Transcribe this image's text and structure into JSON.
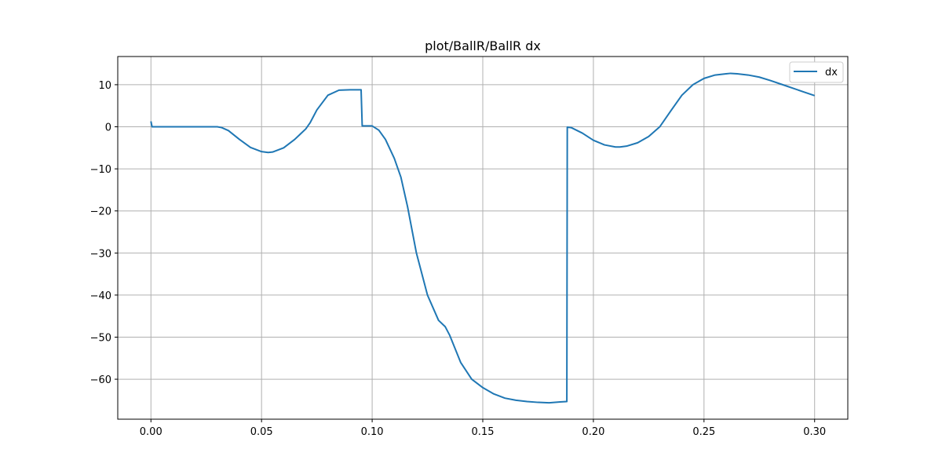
{
  "chart_data": {
    "type": "line",
    "title": "plot/BallR/BallR dx",
    "xlabel": "",
    "ylabel": "",
    "xlim": [
      -0.015,
      0.315
    ],
    "ylim": [
      -69.5,
      16.7
    ],
    "grid": true,
    "legend_position": "top-right",
    "x_ticks": [
      0.0,
      0.05,
      0.1,
      0.15,
      0.2,
      0.25,
      0.3
    ],
    "x_tick_labels": [
      "0.00",
      "0.05",
      "0.10",
      "0.15",
      "0.20",
      "0.25",
      "0.30"
    ],
    "y_ticks": [
      10,
      0,
      -10,
      -20,
      -30,
      -40,
      -50,
      -60
    ],
    "y_tick_labels": [
      "10",
      "0",
      "−10",
      "−20",
      "−30",
      "−40",
      "−50",
      "−60"
    ],
    "series": [
      {
        "name": "dx",
        "color": "#1f77b4",
        "points": [
          [
            0.0,
            1.3
          ],
          [
            0.0005,
            0.0
          ],
          [
            0.01,
            0.0
          ],
          [
            0.02,
            0.0
          ],
          [
            0.03,
            0.0
          ],
          [
            0.032,
            -0.2
          ],
          [
            0.035,
            -0.9
          ],
          [
            0.04,
            -3.0
          ],
          [
            0.045,
            -4.9
          ],
          [
            0.05,
            -5.9
          ],
          [
            0.053,
            -6.1
          ],
          [
            0.055,
            -6.0
          ],
          [
            0.06,
            -5.0
          ],
          [
            0.065,
            -3.0
          ],
          [
            0.07,
            -0.5
          ],
          [
            0.072,
            1.0
          ],
          [
            0.075,
            4.0
          ],
          [
            0.08,
            7.5
          ],
          [
            0.085,
            8.7
          ],
          [
            0.09,
            8.8
          ],
          [
            0.095,
            8.8
          ],
          [
            0.0955,
            0.2
          ],
          [
            0.1,
            0.2
          ],
          [
            0.103,
            -0.8
          ],
          [
            0.106,
            -3.0
          ],
          [
            0.11,
            -7.5
          ],
          [
            0.113,
            -12.0
          ],
          [
            0.116,
            -19.0
          ],
          [
            0.12,
            -30.0
          ],
          [
            0.125,
            -40.0
          ],
          [
            0.13,
            -46.0
          ],
          [
            0.133,
            -47.5
          ],
          [
            0.135,
            -49.5
          ],
          [
            0.14,
            -56.0
          ],
          [
            0.145,
            -60.0
          ],
          [
            0.15,
            -62.0
          ],
          [
            0.155,
            -63.5
          ],
          [
            0.16,
            -64.5
          ],
          [
            0.165,
            -65.0
          ],
          [
            0.17,
            -65.3
          ],
          [
            0.175,
            -65.5
          ],
          [
            0.18,
            -65.6
          ],
          [
            0.185,
            -65.4
          ],
          [
            0.188,
            -65.3
          ],
          [
            0.1882,
            -0.1
          ],
          [
            0.19,
            -0.2
          ],
          [
            0.195,
            -1.5
          ],
          [
            0.2,
            -3.2
          ],
          [
            0.205,
            -4.3
          ],
          [
            0.21,
            -4.8
          ],
          [
            0.212,
            -4.8
          ],
          [
            0.215,
            -4.6
          ],
          [
            0.22,
            -3.8
          ],
          [
            0.225,
            -2.3
          ],
          [
            0.23,
            0.0
          ],
          [
            0.235,
            3.8
          ],
          [
            0.24,
            7.5
          ],
          [
            0.245,
            10.0
          ],
          [
            0.25,
            11.5
          ],
          [
            0.255,
            12.3
          ],
          [
            0.26,
            12.6
          ],
          [
            0.262,
            12.7
          ],
          [
            0.265,
            12.6
          ],
          [
            0.27,
            12.3
          ],
          [
            0.275,
            11.8
          ],
          [
            0.28,
            11.0
          ],
          [
            0.285,
            10.1
          ],
          [
            0.29,
            9.2
          ],
          [
            0.295,
            8.3
          ],
          [
            0.3,
            7.4
          ]
        ]
      }
    ]
  }
}
